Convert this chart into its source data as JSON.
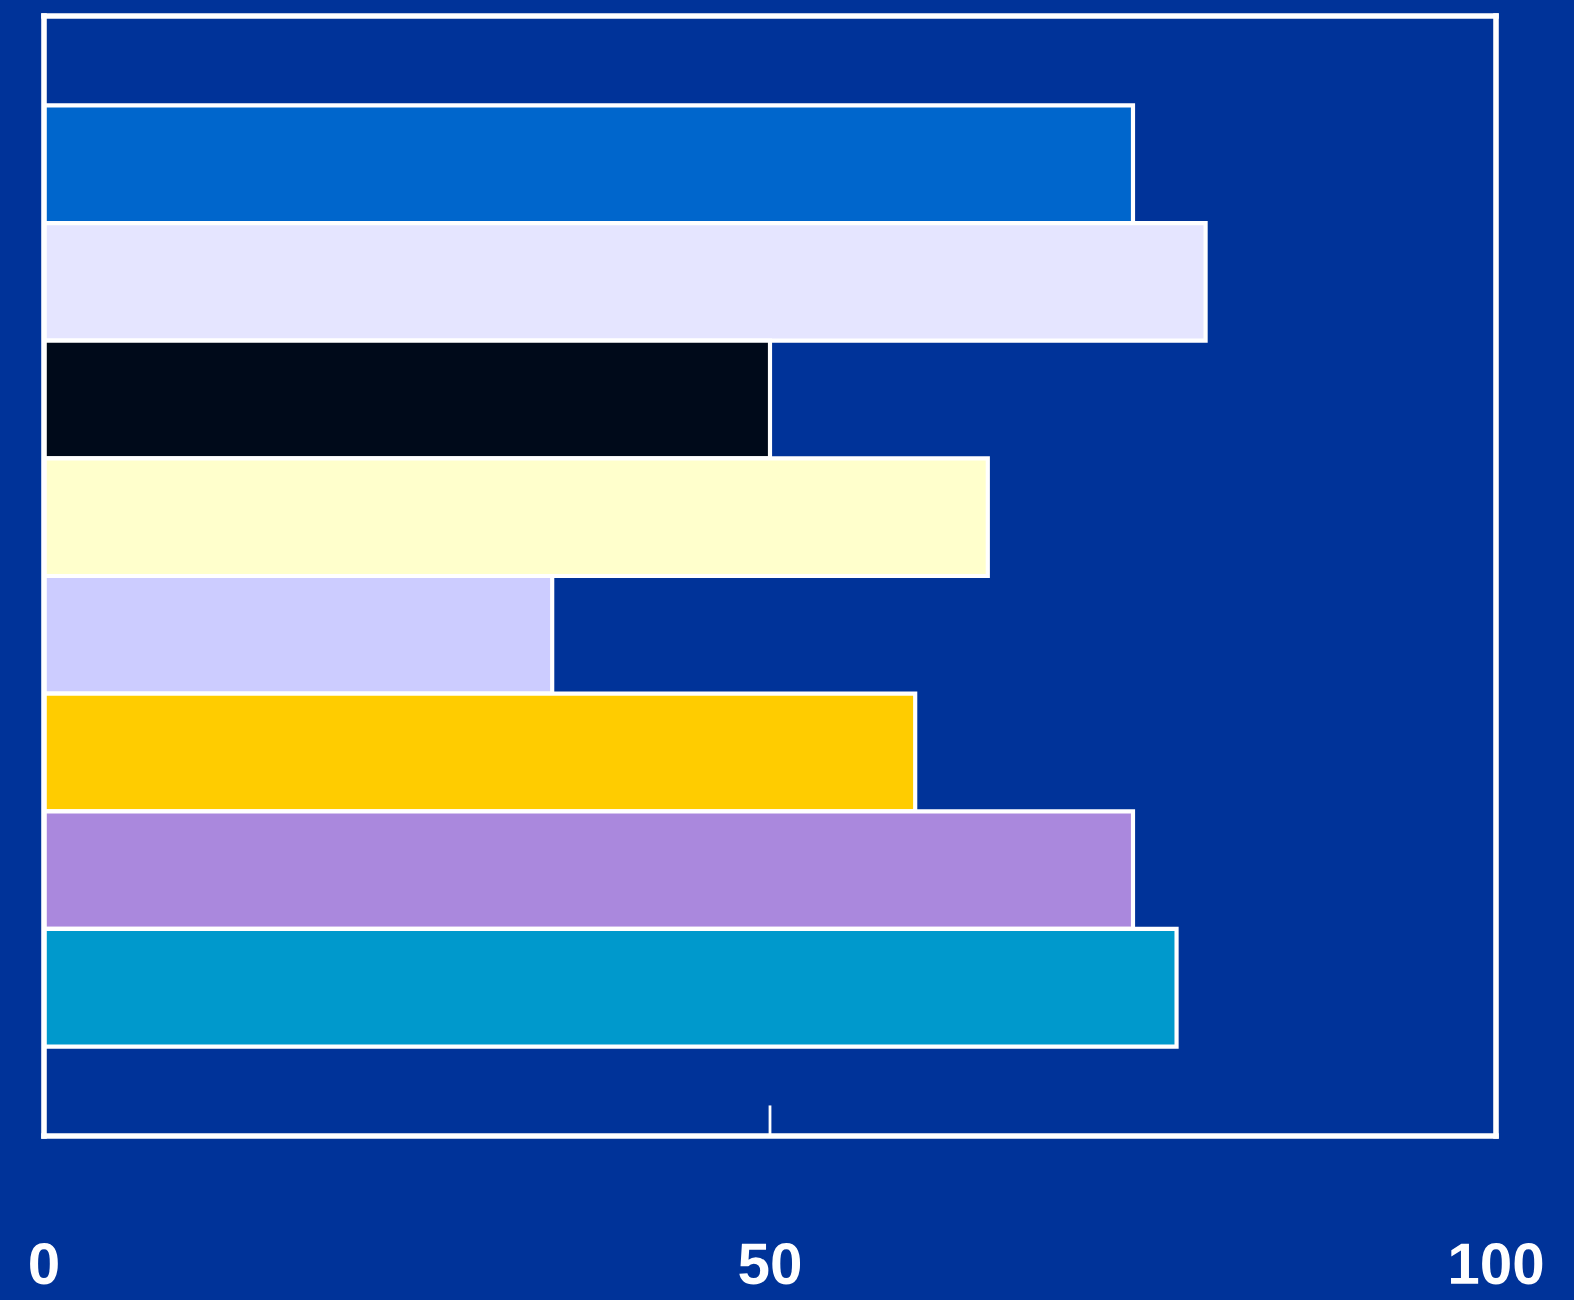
{
  "chart_data": {
    "type": "bar",
    "orientation": "horizontal",
    "categories": [
      null,
      null,
      null,
      null,
      null,
      null,
      null,
      null
    ],
    "values": [
      75,
      80,
      50,
      65,
      35,
      60,
      75,
      78
    ],
    "colors": [
      "#0066cc",
      "#e5e5ff",
      "#000a1a",
      "#ffffcc",
      "#ccccff",
      "#ffcc00",
      "#aa88dd",
      "#0099cc"
    ],
    "xlim": [
      0,
      100
    ],
    "xticks": [
      0,
      50,
      100
    ],
    "grid": false,
    "tick_labels": "x"
  }
}
